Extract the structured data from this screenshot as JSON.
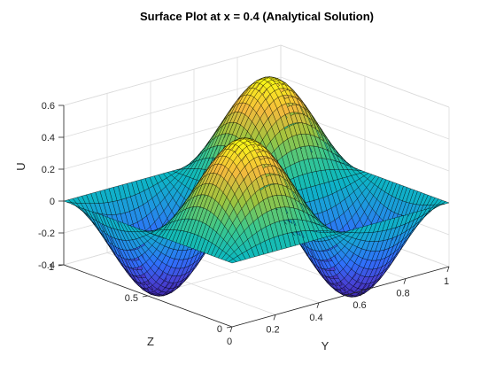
{
  "chart_data": {
    "type": "surface",
    "title": "Surface Plot at x = 0.4 (Analytical Solution)",
    "xlabel": "Y",
    "ylabel": "Z",
    "zlabel": "U",
    "x_axis": {
      "range": [
        0,
        1
      ],
      "ticks": [
        0,
        0.2,
        0.4,
        0.6,
        0.8,
        1
      ],
      "tick_labels": [
        "0",
        "0.2",
        "0.4",
        "0.6",
        "0.8",
        "1"
      ]
    },
    "y_axis": {
      "range": [
        0,
        1
      ],
      "ticks": [
        0,
        0.5,
        1
      ],
      "tick_labels": [
        "0",
        "0.5",
        "1"
      ]
    },
    "z_axis": {
      "range": [
        -0.4,
        0.6
      ],
      "ticks": [
        -0.4,
        -0.2,
        0,
        0.2,
        0.4,
        0.6
      ],
      "tick_labels": [
        "-0.4",
        "-0.2",
        "0",
        "0.2",
        "0.4",
        "0.6"
      ]
    },
    "function": "U(Y,Z) = 0.5878 * sin(2*pi*Y) * sin(2*pi*Z)",
    "amplitude": 0.5878,
    "peaks": [
      {
        "y": 0.25,
        "z": 0.25,
        "u": 0.5878
      },
      {
        "y": 0.75,
        "z": 0.75,
        "u": 0.5878
      },
      {
        "y": 0.25,
        "z": 0.75,
        "u": -0.5878
      },
      {
        "y": 0.75,
        "z": 0.25,
        "u": -0.5878
      }
    ],
    "colormap": "parula",
    "colormap_stops": [
      "#3e26a8",
      "#4743d6",
      "#2f6ffa",
      "#1e97e0",
      "#0bb8c1",
      "#3bc88d",
      "#9fc43e",
      "#f4ba3d",
      "#f9fb15"
    ],
    "grid": true
  }
}
